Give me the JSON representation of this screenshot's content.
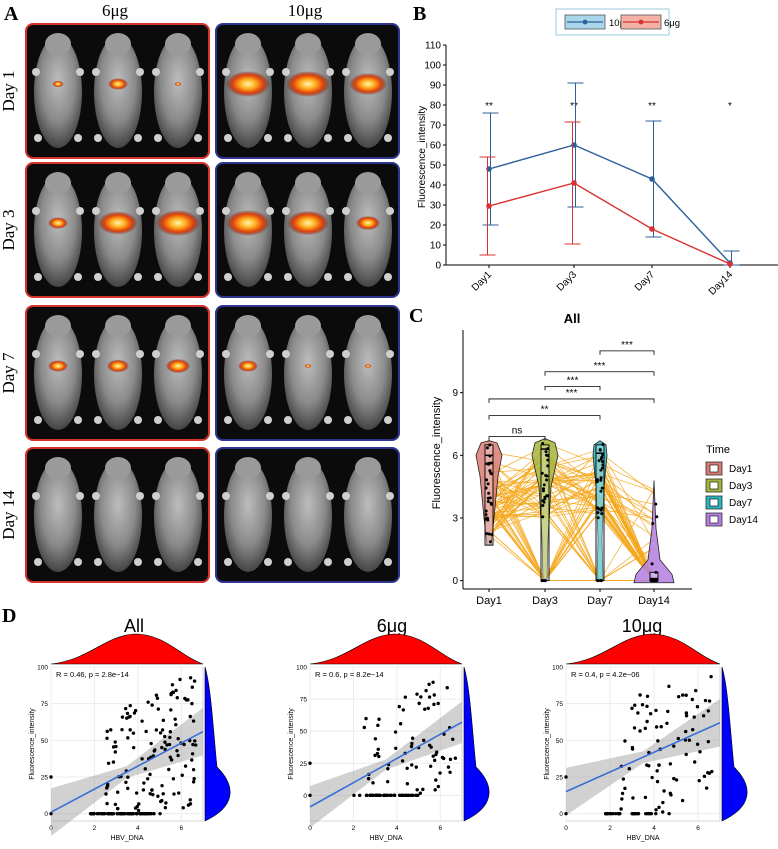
{
  "panel_a": {
    "letter": "A",
    "col_headers": [
      "6μg",
      "10μg"
    ],
    "row_labels": [
      "Day 1",
      "Day 3",
      "Day 7",
      "Day 14"
    ],
    "frame_colors": {
      "left": "#d8322e",
      "right": "#2e3590"
    }
  },
  "panel_b": {
    "letter": "B",
    "legend": [
      "10μg",
      "6μg"
    ],
    "ylabel": "Fluorescence_intensity",
    "significance": [
      "**",
      "**",
      "**",
      "*"
    ]
  },
  "panel_c": {
    "letter": "C",
    "title": "All",
    "ylabel": "Fluorescence_intensity",
    "legend_title": "Time",
    "comparisons": [
      "ns",
      "**",
      "***",
      "***",
      "***",
      "***"
    ]
  },
  "panel_d": {
    "letter": "D",
    "titles": [
      "All",
      "6μg",
      "10μg"
    ],
    "stats": [
      "R = 0.46, p = 2.8e−14",
      "R = 0.6, p = 8.2e−14",
      "R = 0.4, p = 4.2e−06"
    ],
    "xlabel": "HBV_DNA",
    "ylabel": "Fluorescence_intensity"
  },
  "chart_data": [
    {
      "type": "line",
      "panel": "B",
      "categories": [
        "Day1",
        "Day3",
        "Day7",
        "Day14"
      ],
      "ylim": [
        0,
        110
      ],
      "yticks": [
        0,
        10,
        20,
        30,
        40,
        50,
        60,
        70,
        80,
        90,
        100,
        110
      ],
      "xlabel": "",
      "ylabel": "Fluorescence_intensity",
      "legend_position": "top",
      "series": [
        {
          "name": "10μg",
          "color": "#2d5f9b",
          "values": [
            48,
            60,
            43,
            1
          ],
          "upper": [
            76,
            91,
            72,
            7
          ],
          "lower": [
            20,
            29,
            14,
            0
          ]
        },
        {
          "name": "6μg",
          "color": "#d8322e",
          "values": [
            29.5,
            41,
            18,
            0.5
          ],
          "upper": [
            54,
            71.5,
            18,
            0.5
          ],
          "lower": [
            5,
            10.5,
            18,
            0.5
          ]
        }
      ]
    },
    {
      "type": "violin",
      "panel": "C",
      "title": "All",
      "categories": [
        "Day1",
        "Day3",
        "Day7",
        "Day14"
      ],
      "ylim": [
        -0.4,
        12
      ],
      "yticks": [
        0,
        3,
        6,
        9
      ],
      "xlabel": "",
      "ylabel": "Fluorescence_intensity",
      "legend_title": "Time",
      "legend_position": "right",
      "colors": [
        "#d97b72",
        "#a3b53c",
        "#2ab5c0",
        "#b47ee0"
      ],
      "medians": [
        6.0,
        6.3,
        6.1,
        0.1
      ],
      "comparisons": [
        {
          "groups": [
            "Day1",
            "Day3"
          ],
          "label": "ns"
        },
        {
          "groups": [
            "Day1",
            "Day7"
          ],
          "label": "**"
        },
        {
          "groups": [
            "Day1",
            "Day14"
          ],
          "label": "***"
        },
        {
          "groups": [
            "Day3",
            "Day7"
          ],
          "label": "***"
        },
        {
          "groups": [
            "Day3",
            "Day14"
          ],
          "label": "***"
        },
        {
          "groups": [
            "Day7",
            "Day14"
          ],
          "label": "***"
        }
      ]
    },
    {
      "type": "scatter",
      "panel": "D",
      "title": "All",
      "xlabel": "HBV_DNA",
      "ylabel": "Fluorescence_intensity",
      "xlim": [
        0,
        7
      ],
      "ylim": [
        -5,
        100
      ],
      "xticks": [
        0,
        2,
        4,
        6
      ],
      "yticks": [
        0,
        25,
        50,
        75,
        100
      ],
      "R": 0.46,
      "p": "2.8e-14",
      "fit": [
        [
          0,
          1
        ],
        [
          7,
          56
        ]
      ]
    },
    {
      "type": "scatter",
      "panel": "D",
      "title": "6μg",
      "xlabel": "HBV_DNA",
      "ylabel": "Fluorescence_intensity",
      "xlim": [
        0,
        7
      ],
      "ylim": [
        -20,
        100
      ],
      "xticks": [
        0,
        2,
        4,
        6
      ],
      "yticks": [
        0,
        25,
        50,
        75,
        100
      ],
      "R": 0.6,
      "p": "8.2e-14",
      "fit": [
        [
          0,
          -9
        ],
        [
          7,
          57
        ]
      ]
    },
    {
      "type": "scatter",
      "panel": "D",
      "title": "10μg",
      "xlabel": "HBV_DNA",
      "ylabel": "Fluorescence_intensity",
      "xlim": [
        0,
        7
      ],
      "ylim": [
        -5,
        100
      ],
      "xticks": [
        0,
        2,
        4,
        6
      ],
      "yticks": [
        0,
        25,
        50,
        75,
        100
      ],
      "R": 0.4,
      "p": "4.2e-06",
      "fit": [
        [
          0,
          15
        ],
        [
          7,
          62
        ]
      ]
    }
  ]
}
